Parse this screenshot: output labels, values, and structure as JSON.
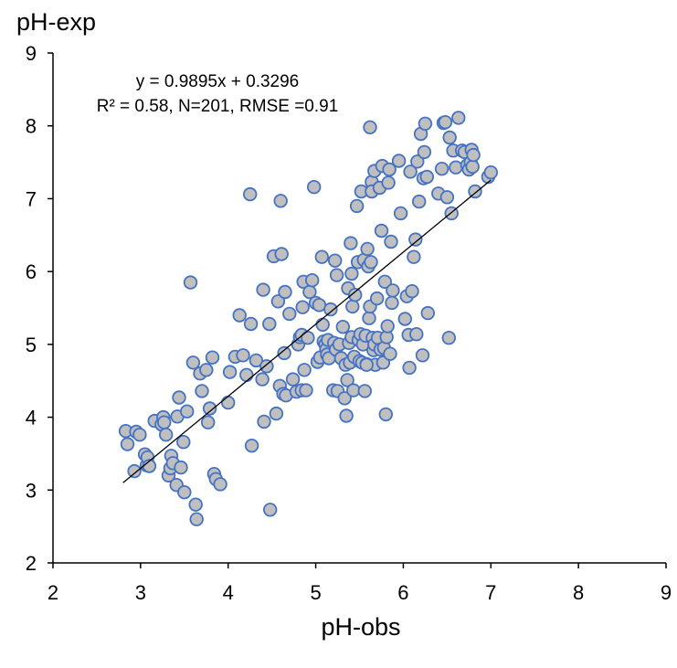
{
  "chart_data": {
    "type": "scatter",
    "title": "",
    "xlabel": "pH-obs",
    "ylabel": "pH-exp",
    "xlim": [
      2,
      9
    ],
    "ylim": [
      2,
      9
    ],
    "xticks": [
      "2",
      "3",
      "4",
      "5",
      "6",
      "7",
      "8",
      "9"
    ],
    "yticks": [
      "2",
      "3",
      "4",
      "5",
      "6",
      "7",
      "8",
      "9"
    ],
    "grid": false,
    "annotations": {
      "equation": "y = 0.9895x + 0.3296",
      "stats": "R² = 0.58, N=201, RMSE =0.91"
    },
    "trendline": {
      "slope": 0.9895,
      "intercept": 0.3296,
      "x_range": [
        2.8,
        7.0
      ],
      "color": "#000000"
    },
    "marker": {
      "fill": "#BFBFBF",
      "stroke": "#4472C4"
    },
    "points": [
      [
        2.83,
        3.81
      ],
      [
        2.85,
        3.63
      ],
      [
        2.93,
        3.26
      ],
      [
        2.95,
        3.8
      ],
      [
        2.99,
        3.76
      ],
      [
        3.05,
        3.49
      ],
      [
        3.07,
        3.34
      ],
      [
        3.08,
        3.45
      ],
      [
        3.1,
        3.33
      ],
      [
        3.16,
        3.95
      ],
      [
        3.24,
        3.9
      ],
      [
        3.26,
        4.0
      ],
      [
        3.27,
        3.93
      ],
      [
        3.29,
        3.76
      ],
      [
        3.32,
        3.2
      ],
      [
        3.34,
        3.3
      ],
      [
        3.35,
        3.47
      ],
      [
        3.37,
        3.37
      ],
      [
        3.41,
        3.07
      ],
      [
        3.42,
        4.01
      ],
      [
        3.44,
        4.27
      ],
      [
        3.46,
        3.31
      ],
      [
        3.49,
        3.66
      ],
      [
        3.5,
        2.97
      ],
      [
        3.53,
        4.08
      ],
      [
        3.57,
        5.85
      ],
      [
        3.6,
        4.75
      ],
      [
        3.63,
        2.8
      ],
      [
        3.64,
        2.6
      ],
      [
        3.68,
        4.6
      ],
      [
        3.7,
        4.36
      ],
      [
        3.75,
        4.65
      ],
      [
        3.77,
        3.93
      ],
      [
        3.79,
        4.12
      ],
      [
        3.82,
        4.82
      ],
      [
        3.84,
        3.22
      ],
      [
        3.86,
        3.15
      ],
      [
        3.91,
        3.08
      ],
      [
        4.0,
        4.2
      ],
      [
        4.02,
        4.62
      ],
      [
        4.08,
        4.83
      ],
      [
        4.13,
        5.4
      ],
      [
        4.17,
        4.85
      ],
      [
        4.21,
        4.58
      ],
      [
        4.25,
        7.06
      ],
      [
        4.26,
        5.28
      ],
      [
        4.27,
        3.61
      ],
      [
        4.32,
        4.78
      ],
      [
        4.39,
        4.52
      ],
      [
        4.4,
        5.75
      ],
      [
        4.41,
        3.94
      ],
      [
        4.44,
        4.7
      ],
      [
        4.47,
        5.28
      ],
      [
        4.48,
        2.73
      ],
      [
        4.52,
        6.21
      ],
      [
        4.55,
        4.05
      ],
      [
        4.57,
        5.59
      ],
      [
        4.59,
        4.43
      ],
      [
        4.6,
        6.97
      ],
      [
        4.61,
        6.24
      ],
      [
        4.63,
        4.32
      ],
      [
        4.64,
        4.88
      ],
      [
        4.65,
        5.72
      ],
      [
        4.66,
        4.3
      ],
      [
        4.7,
        5.42
      ],
      [
        4.74,
        4.52
      ],
      [
        4.78,
        4.35
      ],
      [
        4.8,
        5.0
      ],
      [
        4.82,
        5.1
      ],
      [
        4.84,
        5.13
      ],
      [
        4.84,
        4.37
      ],
      [
        4.85,
        5.51
      ],
      [
        4.86,
        5.86
      ],
      [
        4.87,
        4.65
      ],
      [
        4.89,
        4.37
      ],
      [
        4.91,
        5.09
      ],
      [
        4.93,
        5.72
      ],
      [
        4.96,
        5.88
      ],
      [
        4.98,
        7.16
      ],
      [
        5.0,
        5.57
      ],
      [
        5.02,
        4.76
      ],
      [
        5.04,
        5.54
      ],
      [
        5.05,
        4.82
      ],
      [
        5.07,
        6.2
      ],
      [
        5.08,
        5.27
      ],
      [
        5.09,
        5.04
      ],
      [
        5.11,
        5.0
      ],
      [
        5.12,
        4.93
      ],
      [
        5.13,
        4.86
      ],
      [
        5.14,
        5.06
      ],
      [
        5.15,
        4.81
      ],
      [
        5.17,
        5.48
      ],
      [
        5.2,
        4.37
      ],
      [
        5.21,
        5.02
      ],
      [
        5.22,
        6.15
      ],
      [
        5.23,
        4.93
      ],
      [
        5.24,
        5.95
      ],
      [
        5.25,
        4.36
      ],
      [
        5.27,
        5.0
      ],
      [
        5.29,
        4.81
      ],
      [
        5.31,
        5.24
      ],
      [
        5.33,
        4.26
      ],
      [
        5.34,
        4.72
      ],
      [
        5.35,
        4.02
      ],
      [
        5.36,
        4.51
      ],
      [
        5.37,
        5.77
      ],
      [
        5.38,
        5.02
      ],
      [
        5.39,
        4.75
      ],
      [
        5.4,
        6.39
      ],
      [
        5.41,
        5.97
      ],
      [
        5.41,
        5.1
      ],
      [
        5.42,
        5.52
      ],
      [
        5.43,
        4.37
      ],
      [
        5.44,
        4.83
      ],
      [
        5.45,
        5.68
      ],
      [
        5.47,
        6.9
      ],
      [
        5.48,
        6.13
      ],
      [
        5.49,
        5.06
      ],
      [
        5.5,
        4.77
      ],
      [
        5.51,
        5.14
      ],
      [
        5.52,
        7.1
      ],
      [
        5.53,
        4.75
      ],
      [
        5.54,
        5.0
      ],
      [
        5.55,
        6.16
      ],
      [
        5.56,
        4.36
      ],
      [
        5.57,
        5.12
      ],
      [
        5.58,
        4.73
      ],
      [
        5.59,
        6.31
      ],
      [
        5.6,
        6.07
      ],
      [
        5.61,
        5.36
      ],
      [
        5.62,
        7.98
      ],
      [
        5.62,
        5.52
      ],
      [
        5.63,
        6.13
      ],
      [
        5.64,
        7.23
      ],
      [
        5.64,
        7.1
      ],
      [
        5.65,
        5.09
      ],
      [
        5.66,
        4.92
      ],
      [
        5.67,
        5.0
      ],
      [
        5.67,
        7.38
      ],
      [
        5.68,
        4.72
      ],
      [
        5.7,
        5.63
      ],
      [
        5.71,
        5.09
      ],
      [
        5.73,
        7.15
      ],
      [
        5.74,
        4.93
      ],
      [
        5.75,
        6.56
      ],
      [
        5.76,
        7.45
      ],
      [
        5.77,
        4.75
      ],
      [
        5.78,
        4.95
      ],
      [
        5.79,
        5.86
      ],
      [
        5.8,
        4.04
      ],
      [
        5.81,
        5.1
      ],
      [
        5.82,
        5.25
      ],
      [
        5.83,
        7.22
      ],
      [
        5.84,
        7.4
      ],
      [
        5.85,
        4.87
      ],
      [
        5.86,
        6.41
      ],
      [
        5.87,
        5.57
      ],
      [
        5.88,
        5.74
      ],
      [
        5.95,
        7.52
      ],
      [
        5.97,
        6.8
      ],
      [
        6.02,
        5.35
      ],
      [
        6.04,
        5.66
      ],
      [
        6.06,
        5.13
      ],
      [
        6.07,
        4.68
      ],
      [
        6.08,
        7.37
      ],
      [
        6.1,
        5.73
      ],
      [
        6.12,
        6.2
      ],
      [
        6.14,
        6.44
      ],
      [
        6.15,
        5.14
      ],
      [
        6.16,
        7.51
      ],
      [
        6.18,
        6.96
      ],
      [
        6.2,
        7.89
      ],
      [
        6.22,
        4.85
      ],
      [
        6.23,
        7.28
      ],
      [
        6.24,
        7.64
      ],
      [
        6.25,
        8.03
      ],
      [
        6.27,
        7.3
      ],
      [
        6.28,
        5.43
      ],
      [
        6.4,
        7.07
      ],
      [
        6.44,
        7.41
      ],
      [
        6.46,
        8.04
      ],
      [
        6.48,
        8.05
      ],
      [
        6.5,
        7.02
      ],
      [
        6.52,
        5.09
      ],
      [
        6.53,
        7.84
      ],
      [
        6.55,
        6.8
      ],
      [
        6.57,
        7.66
      ],
      [
        6.6,
        7.43
      ],
      [
        6.63,
        8.11
      ],
      [
        6.67,
        7.66
      ],
      [
        6.7,
        7.64
      ],
      [
        6.73,
        7.46
      ],
      [
        6.75,
        7.4
      ],
      [
        6.77,
        7.5
      ],
      [
        6.78,
        7.67
      ],
      [
        6.79,
        7.44
      ],
      [
        6.8,
        7.6
      ],
      [
        6.82,
        7.1
      ],
      [
        6.97,
        7.3
      ],
      [
        7.0,
        7.36
      ],
      [
        5.58,
        4.72
      ]
    ]
  }
}
